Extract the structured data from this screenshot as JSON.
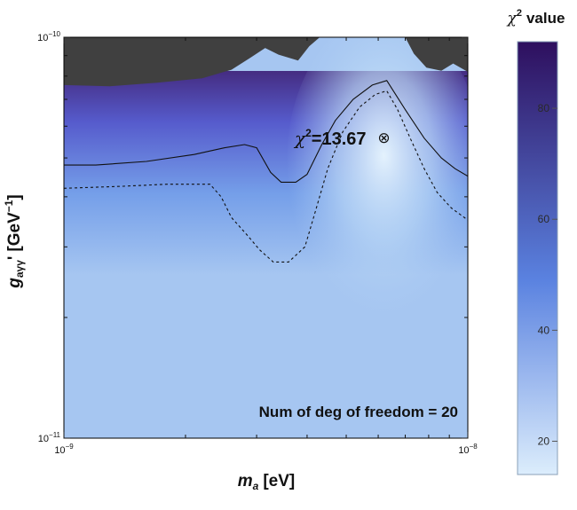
{
  "chart_data": {
    "type": "heatmap",
    "x_axis": {
      "symbol": "m",
      "subscript": "a",
      "unit": "[eV]",
      "scale": "log",
      "range": [
        1e-09,
        1e-08
      ],
      "ticks": [
        {
          "value": 1e-09,
          "mantissa": "10",
          "exp": "−9"
        },
        {
          "value": 1e-08,
          "mantissa": "10",
          "exp": "−8"
        }
      ]
    },
    "y_axis": {
      "symbol": "g",
      "subscript": "aγγ",
      "prime": "'",
      "unit_open": "[GeV",
      "unit_exp": "−1",
      "unit_close": "]",
      "scale": "log",
      "range": [
        1e-11,
        1e-10
      ],
      "ticks": [
        {
          "value": 1e-11,
          "mantissa": "10",
          "exp": "−11"
        },
        {
          "value": 1e-10,
          "mantissa": "10",
          "exp": "−10"
        }
      ]
    },
    "colorbar": {
      "title_symbol": "χ",
      "title_exp": "2",
      "title_word": "value",
      "range": [
        14,
        92
      ],
      "ticks": [
        20,
        40,
        60,
        80
      ],
      "colors": {
        "low": "#dcedfc",
        "mid": "#5a82e0",
        "high": "#2e0f5e"
      }
    },
    "excluded_region_color": "#404040",
    "best_fit": {
      "m": 6.2e-09,
      "g": 5.6e-11,
      "marker": "⊗",
      "label_symbol": "χ",
      "label_exp": "2",
      "label_value": "=13.67"
    },
    "annotation": "Num of deg of freedom = 20",
    "contours": [
      {
        "style": "solid",
        "points": [
          [
            1e-09,
            4.8e-11
          ],
          [
            1.2e-09,
            4.8e-11
          ],
          [
            1.6e-09,
            4.9e-11
          ],
          [
            2.1e-09,
            5.1e-11
          ],
          [
            2.5e-09,
            5.3e-11
          ],
          [
            2.8e-09,
            5.4e-11
          ],
          [
            3e-09,
            5.3e-11
          ],
          [
            3.25e-09,
            4.6e-11
          ],
          [
            3.45e-09,
            4.35e-11
          ],
          [
            3.75e-09,
            4.35e-11
          ],
          [
            4e-09,
            4.55e-11
          ],
          [
            4.35e-09,
            5.4e-11
          ],
          [
            4.7e-09,
            6.2e-11
          ],
          [
            5.2e-09,
            7e-11
          ],
          [
            5.8e-09,
            7.6e-11
          ],
          [
            6.3e-09,
            7.8e-11
          ],
          [
            7e-09,
            6.6e-11
          ],
          [
            7.8e-09,
            5.6e-11
          ],
          [
            8.6e-09,
            5e-11
          ],
          [
            9.3e-09,
            4.7e-11
          ],
          [
            1e-08,
            4.5e-11
          ]
        ]
      },
      {
        "style": "dashed",
        "points": [
          [
            1e-09,
            4.2e-11
          ],
          [
            1.4e-09,
            4.25e-11
          ],
          [
            1.8e-09,
            4.3e-11
          ],
          [
            2.3e-09,
            4.3e-11
          ],
          [
            2.45e-09,
            4e-11
          ],
          [
            2.6e-09,
            3.55e-11
          ],
          [
            2.85e-09,
            3.2e-11
          ],
          [
            3.05e-09,
            2.95e-11
          ],
          [
            3.3e-09,
            2.75e-11
          ],
          [
            3.6e-09,
            2.75e-11
          ],
          [
            3.95e-09,
            3e-11
          ],
          [
            4.2e-09,
            3.7e-11
          ],
          [
            4.5e-09,
            4.7e-11
          ],
          [
            4.9e-09,
            5.8e-11
          ],
          [
            5.4e-09,
            6.7e-11
          ],
          [
            5.9e-09,
            7.2e-11
          ],
          [
            6.3e-09,
            7.35e-11
          ],
          [
            6.7e-09,
            6.6e-11
          ],
          [
            7.2e-09,
            5.6e-11
          ],
          [
            7.8e-09,
            4.7e-11
          ],
          [
            8.4e-09,
            4.1e-11
          ],
          [
            9.1e-09,
            3.75e-11
          ],
          [
            1e-08,
            3.5e-11
          ]
        ]
      }
    ],
    "excluded_boundary": [
      [
        1e-09,
        7.6e-11
      ],
      [
        1.3e-09,
        7.55e-11
      ],
      [
        1.7e-09,
        7.7e-11
      ],
      [
        2.2e-09,
        7.9e-11
      ],
      [
        2.6e-09,
        8.3e-11
      ],
      [
        2.9e-09,
        8.9e-11
      ],
      [
        3.15e-09,
        9.4e-11
      ],
      [
        3.4e-09,
        9.05e-11
      ],
      [
        3.8e-09,
        8.75e-11
      ],
      [
        4.05e-09,
        9.5e-11
      ],
      [
        4.3e-09,
        1e-10
      ],
      [
        7e-09,
        1e-10
      ],
      [
        7.35e-09,
        9.1e-11
      ],
      [
        7.9e-09,
        8.4e-11
      ],
      [
        8.6e-09,
        8.25e-11
      ],
      [
        9.2e-09,
        8.6e-11
      ],
      [
        1e-08,
        8.2e-11
      ]
    ]
  }
}
